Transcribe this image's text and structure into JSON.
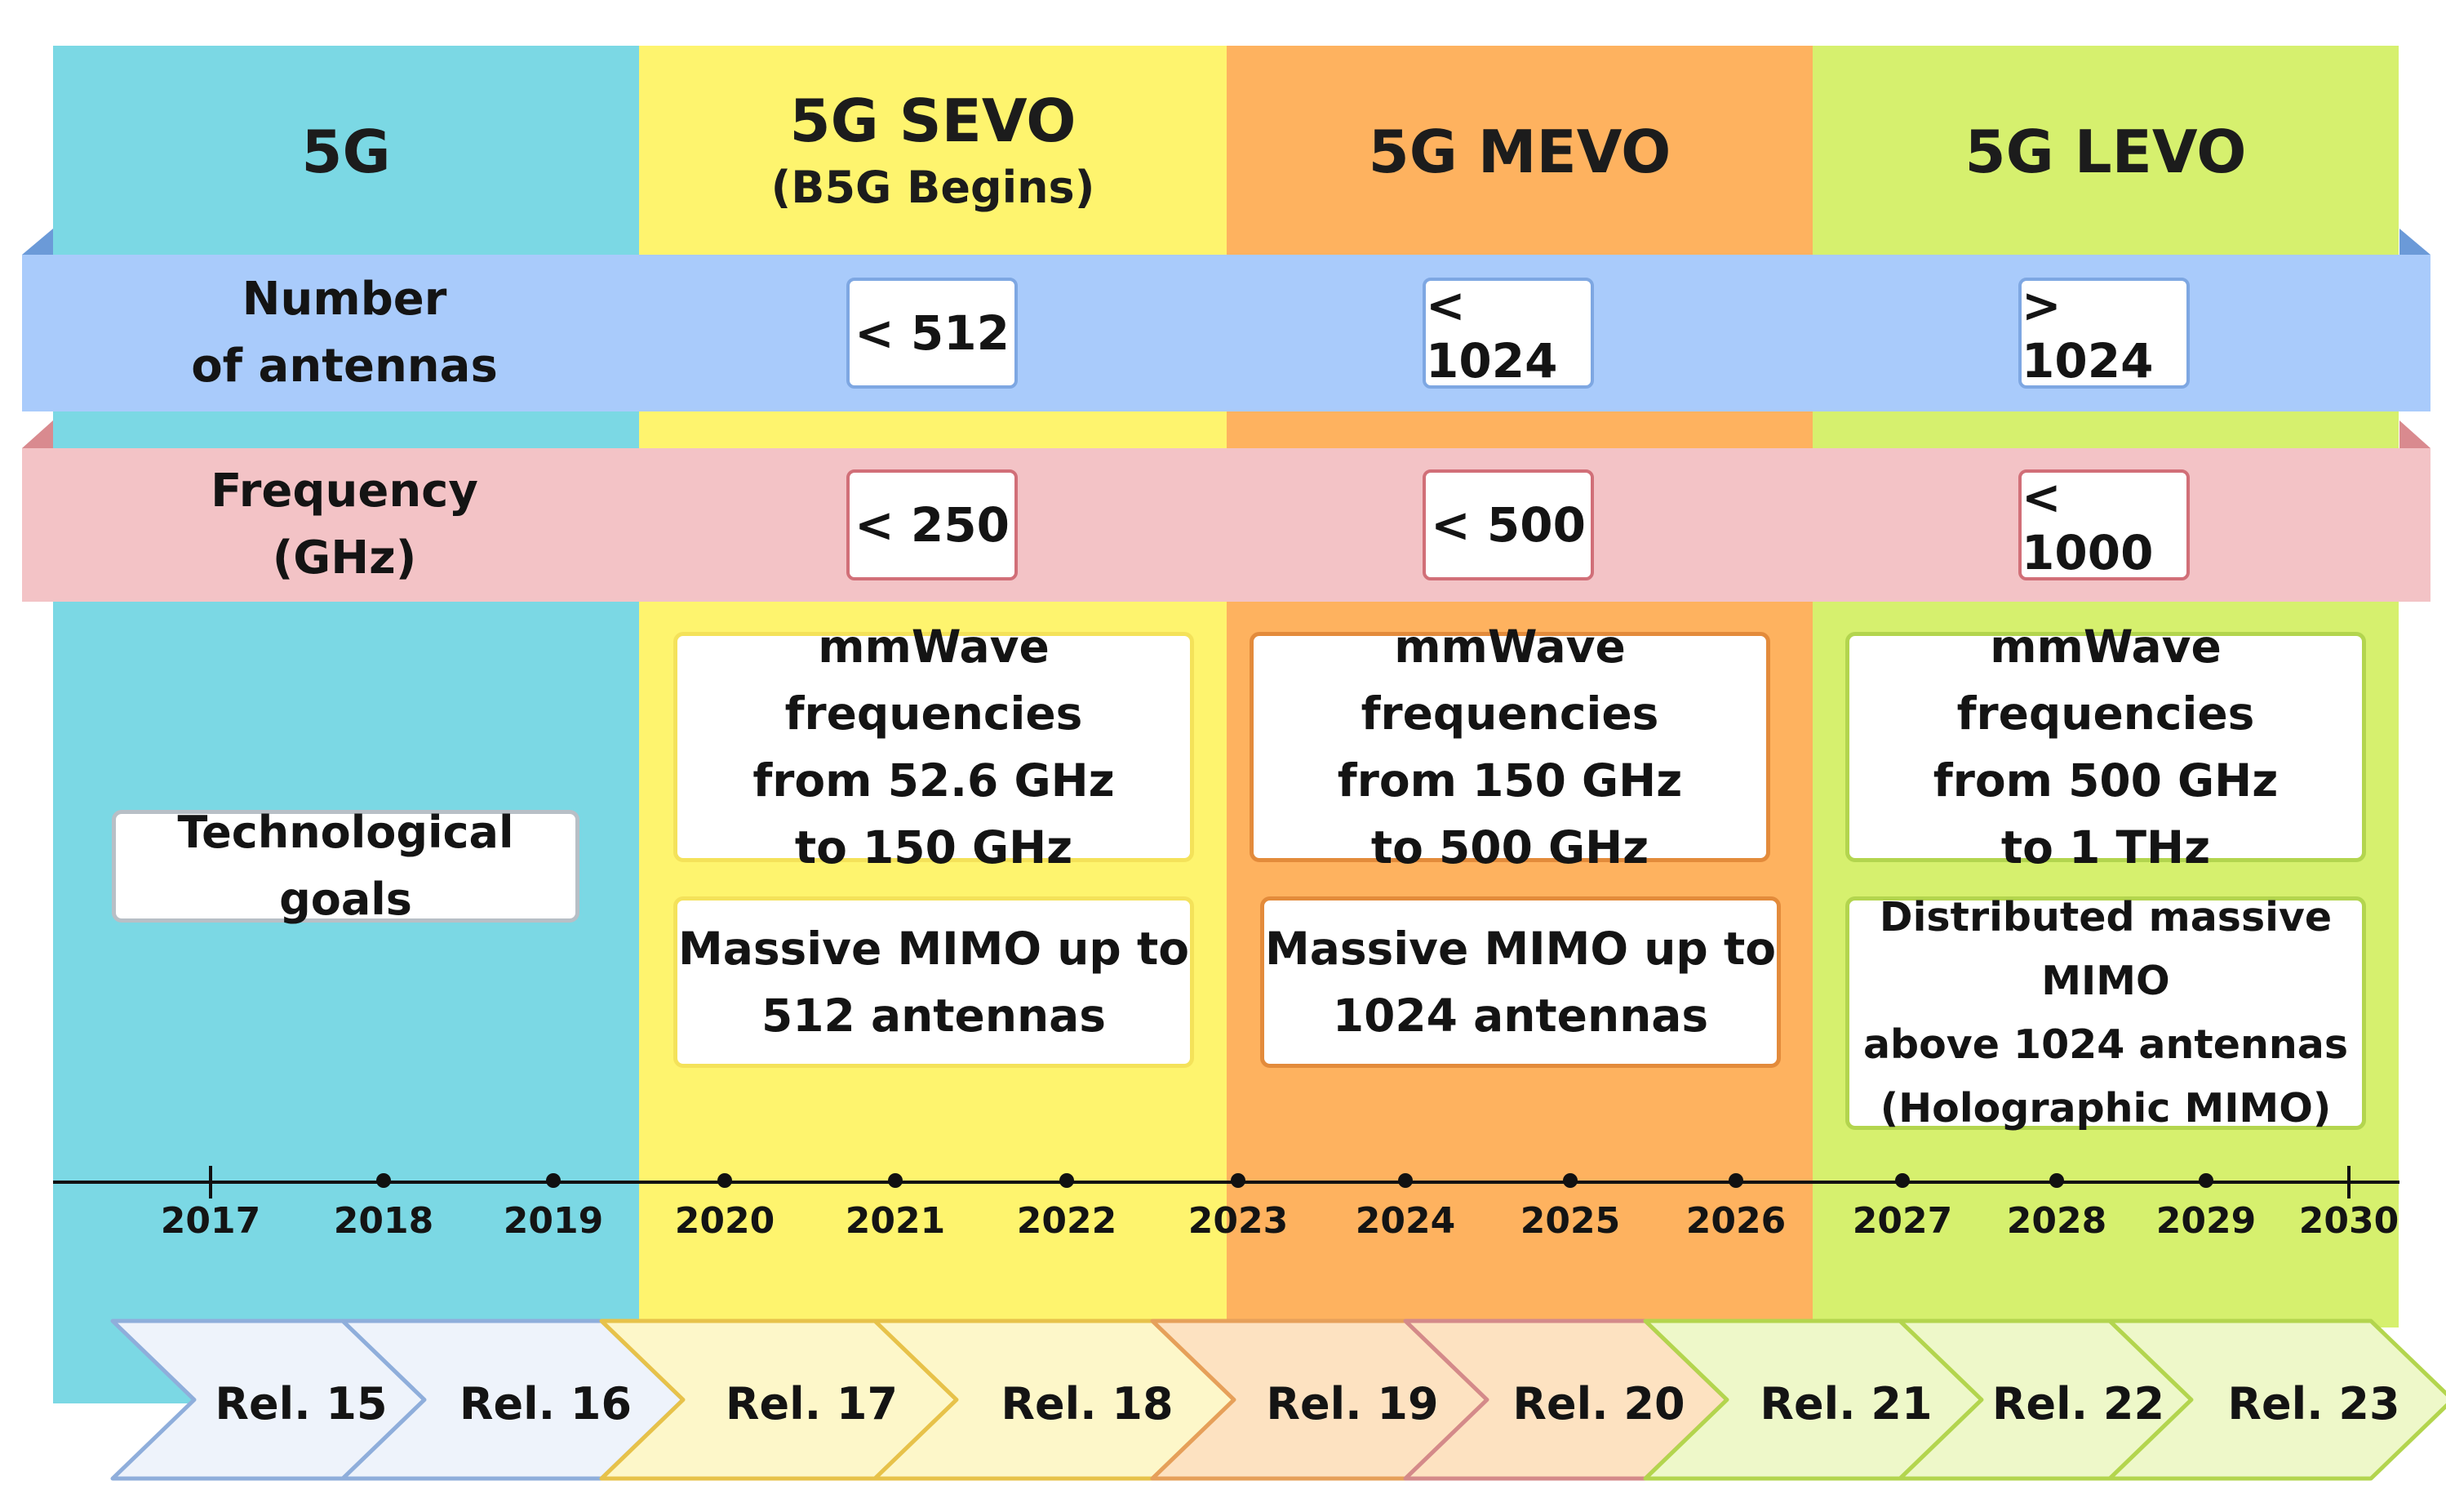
{
  "phases": [
    {
      "title": "5G",
      "subtitle": "",
      "color": "#7bd8e4"
    },
    {
      "title": "5G SEVO",
      "subtitle": "(B5G Begins)",
      "color": "#fef46e"
    },
    {
      "title": "5G MEVO",
      "subtitle": "",
      "color": "#feb25f"
    },
    {
      "title": "5G LEVO",
      "subtitle": "",
      "color": "#d6f06e"
    }
  ],
  "antennas": {
    "label_line1": "Number",
    "label_line2": "of antennas",
    "values": [
      "< 512",
      "< 1024",
      "> 1024"
    ],
    "color": "#a9cbfb"
  },
  "frequency": {
    "label_line1": "Frequency",
    "label_line2": "(GHz)",
    "values": [
      "< 250",
      "< 500",
      "< 1000"
    ],
    "color": "#f3c3c6"
  },
  "goals_label": "Technological goals",
  "freq_cards": [
    "mmWave frequencies\nfrom 52.6 GHz\nto 150 GHz",
    "mmWave frequencies\nfrom 150 GHz\nto 500 GHz",
    "mmWave frequencies\nfrom 500 GHz\nto 1 THz"
  ],
  "mimo_cards": [
    "Massive MIMO up to\n512 antennas",
    "Massive MIMO up to\n1024 antennas",
    "Distributed massive MIMO\nabove 1024 antennas\n(Holographic MIMO)"
  ],
  "years": [
    "2017",
    "2018",
    "2019",
    "2020",
    "2021",
    "2022",
    "2023",
    "2024",
    "2025",
    "2026",
    "2027",
    "2028",
    "2029",
    "2030"
  ],
  "releases": [
    {
      "label": "Rel. 15",
      "fill": "#eef3fb",
      "stroke": "#8faedb"
    },
    {
      "label": "Rel. 16",
      "fill": "#eef3fb",
      "stroke": "#8faedb"
    },
    {
      "label": "Rel. 17",
      "fill": "#fdf7c9",
      "stroke": "#e7c24a"
    },
    {
      "label": "Rel. 18",
      "fill": "#fdf7c9",
      "stroke": "#e7c24a"
    },
    {
      "label": "Rel. 19",
      "fill": "#fde2c1",
      "stroke": "#e6a05a"
    },
    {
      "label": "Rel. 20",
      "fill": "#fde2c1",
      "stroke": "#d48a8a"
    },
    {
      "label": "Rel. 21",
      "fill": "#eef8c9",
      "stroke": "#b3d54e"
    },
    {
      "label": "Rel. 22",
      "fill": "#eef8c9",
      "stroke": "#b3d54e"
    },
    {
      "label": "Rel. 23",
      "fill": "#eef8c9",
      "stroke": "#b3d54e"
    }
  ]
}
